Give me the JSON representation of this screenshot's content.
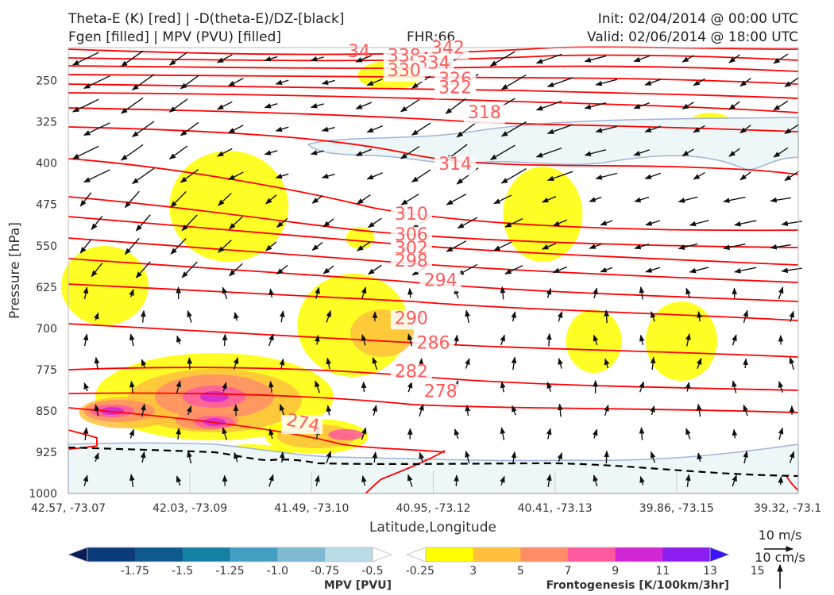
{
  "header": {
    "title_line1": "Theta-E (K) [red] | -D(theta-E)/DZ-[black]",
    "title_line2": "Fgen [filled] | MPV (PVU) [filled]",
    "fhr": "FHR:66",
    "init": "Init: 02/04/2014 @ 00:00 UTC",
    "valid": "Valid: 02/06/2014 @ 18:00 UTC"
  },
  "chart_data": {
    "type": "cross-section",
    "xlabel": "Latitude,Longitude",
    "ylabel": "Pressure [hPa]",
    "x_ticks": [
      "42.57, -73.07",
      "42.03, -73.09",
      "41.49, -73.10",
      "40.95, -73.12",
      "40.41, -73.13",
      "39.86, -73.15",
      "39.32, -73.1"
    ],
    "y_ticks": [
      250,
      325,
      400,
      475,
      550,
      625,
      700,
      775,
      850,
      925,
      1000
    ],
    "ylim": [
      1000,
      190
    ],
    "theta_e_contours": {
      "color": "#ff0000",
      "label_color": "#ff5a5a",
      "labels": [
        {
          "text": "342",
          "x": 0.52,
          "p": 201
        },
        {
          "text": "338",
          "x": 0.46,
          "p": 215
        },
        {
          "text": "334",
          "x": 0.5,
          "p": 228
        },
        {
          "text": "330",
          "x": 0.46,
          "p": 242
        },
        {
          "text": "326",
          "x": 0.53,
          "p": 258
        },
        {
          "text": "322",
          "x": 0.53,
          "p": 273
        },
        {
          "text": "318",
          "x": 0.57,
          "p": 318
        },
        {
          "text": "314",
          "x": 0.53,
          "p": 412
        },
        {
          "text": "310",
          "x": 0.47,
          "p": 503
        },
        {
          "text": "306",
          "x": 0.47,
          "p": 540
        },
        {
          "text": "302",
          "x": 0.47,
          "p": 565
        },
        {
          "text": "298",
          "x": 0.47,
          "p": 588
        },
        {
          "text": "294",
          "x": 0.51,
          "p": 623
        },
        {
          "text": "290",
          "x": 0.47,
          "p": 692
        },
        {
          "text": "286",
          "x": 0.5,
          "p": 737
        },
        {
          "text": "282",
          "x": 0.47,
          "p": 789
        },
        {
          "text": "278",
          "x": 0.51,
          "p": 825
        },
        {
          "text": "274",
          "x": 0.32,
          "p": 882
        }
      ],
      "partial_label": "34"
    },
    "stability_contour": {
      "color": "#000000",
      "style": "dashed"
    },
    "mpv_colorbar": {
      "title": "MPV [PVU]",
      "ticks": [
        "-1.75",
        "-1.5",
        "-1.25",
        "-1.0",
        "-0.75",
        "-0.5",
        "-0.25"
      ],
      "colors": [
        "#081d58",
        "#0b3b78",
        "#0f5a8c",
        "#1380a4",
        "#41a0c2",
        "#7fbad2",
        "#b8dbe6",
        "#ffffff"
      ]
    },
    "fgen_colorbar": {
      "title": "Frontogenesis [K/100km/3hr]",
      "ticks": [
        "3",
        "5",
        "7",
        "9",
        "11",
        "13",
        "15"
      ],
      "colors": [
        "#ffffff",
        "#ffff00",
        "#ffc13d",
        "#ff8e68",
        "#ff5aa0",
        "#d126d4",
        "#8a1df0",
        "#3a14f8"
      ]
    },
    "wind_key": {
      "horizontal": "10 m/s",
      "vertical": "10 cm/s"
    }
  }
}
